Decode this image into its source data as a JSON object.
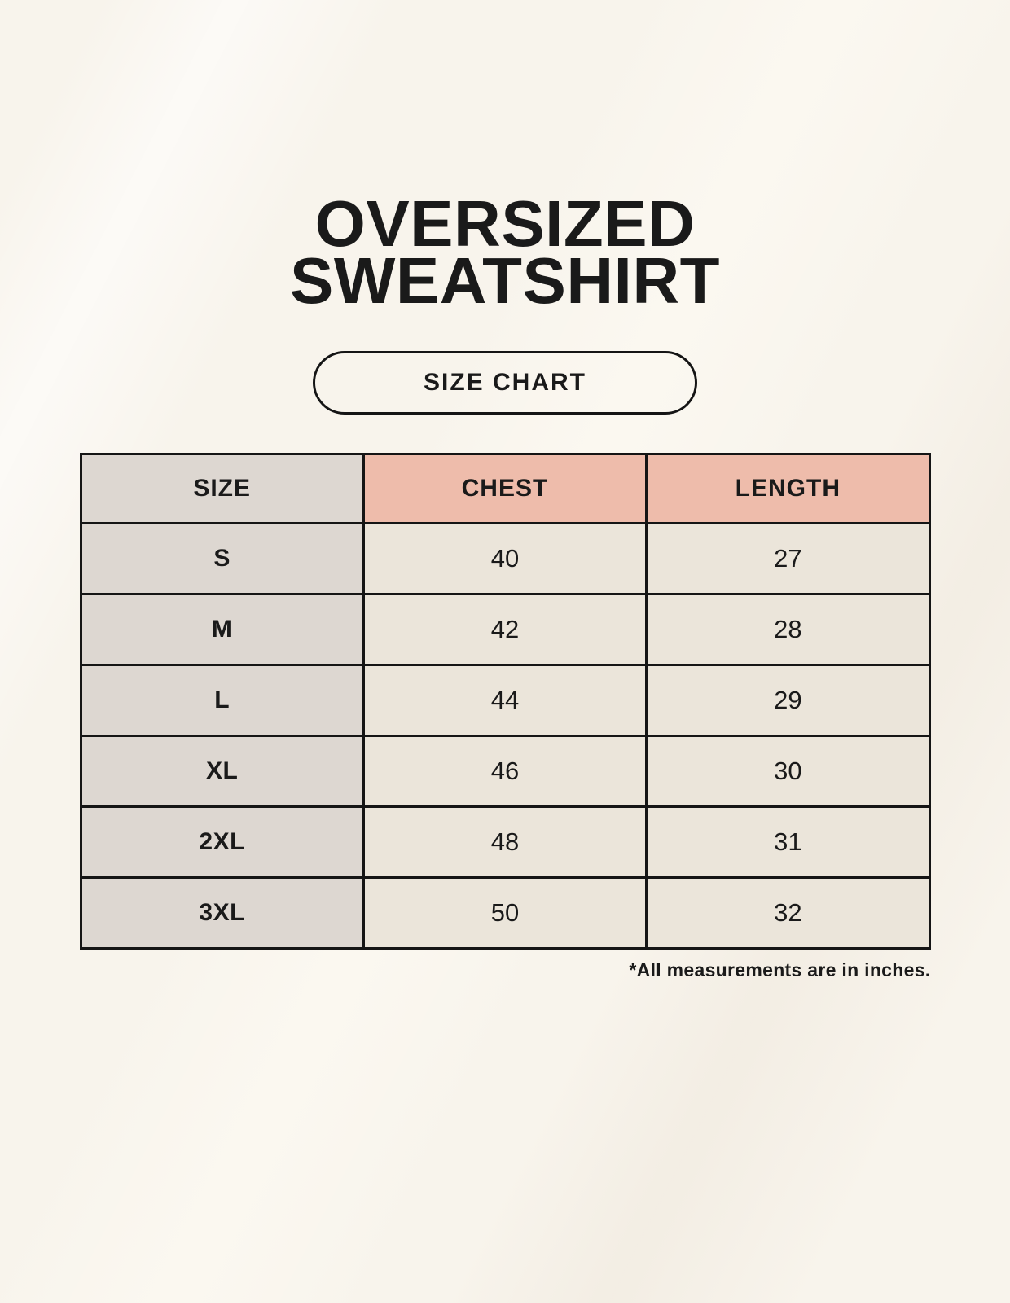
{
  "page": {
    "title_line1": "OVERSIZED",
    "title_line2": "SWEATSHIRT",
    "badge_label": "SIZE CHART",
    "footnote": "*All measurements are in inches."
  },
  "size_table": {
    "columns": [
      "SIZE",
      "CHEST",
      "LENGTH"
    ],
    "rows": [
      {
        "size": "S",
        "chest": "40",
        "length": "27"
      },
      {
        "size": "M",
        "chest": "42",
        "length": "28"
      },
      {
        "size": "L",
        "chest": "44",
        "length": "29"
      },
      {
        "size": "XL",
        "chest": "46",
        "length": "30"
      },
      {
        "size": "2XL",
        "chest": "48",
        "length": "31"
      },
      {
        "size": "3XL",
        "chest": "50",
        "length": "32"
      }
    ]
  },
  "chart_data": {
    "type": "table",
    "title": "OVERSIZED SWEATSHIRT",
    "columns": [
      "SIZE",
      "CHEST",
      "LENGTH"
    ],
    "rows": [
      [
        "S",
        40,
        27
      ],
      [
        "M",
        42,
        28
      ],
      [
        "L",
        44,
        29
      ],
      [
        "XL",
        46,
        30
      ],
      [
        "2XL",
        48,
        31
      ],
      [
        "3XL",
        50,
        32
      ]
    ],
    "units": "inches",
    "footnote": "*All measurements are in inches."
  },
  "colors": {
    "background": "#f8f4ec",
    "header_accent": "#eebcab",
    "size_column": "#ddd7d1",
    "cell": "#ebe5da",
    "border": "#151515",
    "text": "#1a1a1a"
  }
}
